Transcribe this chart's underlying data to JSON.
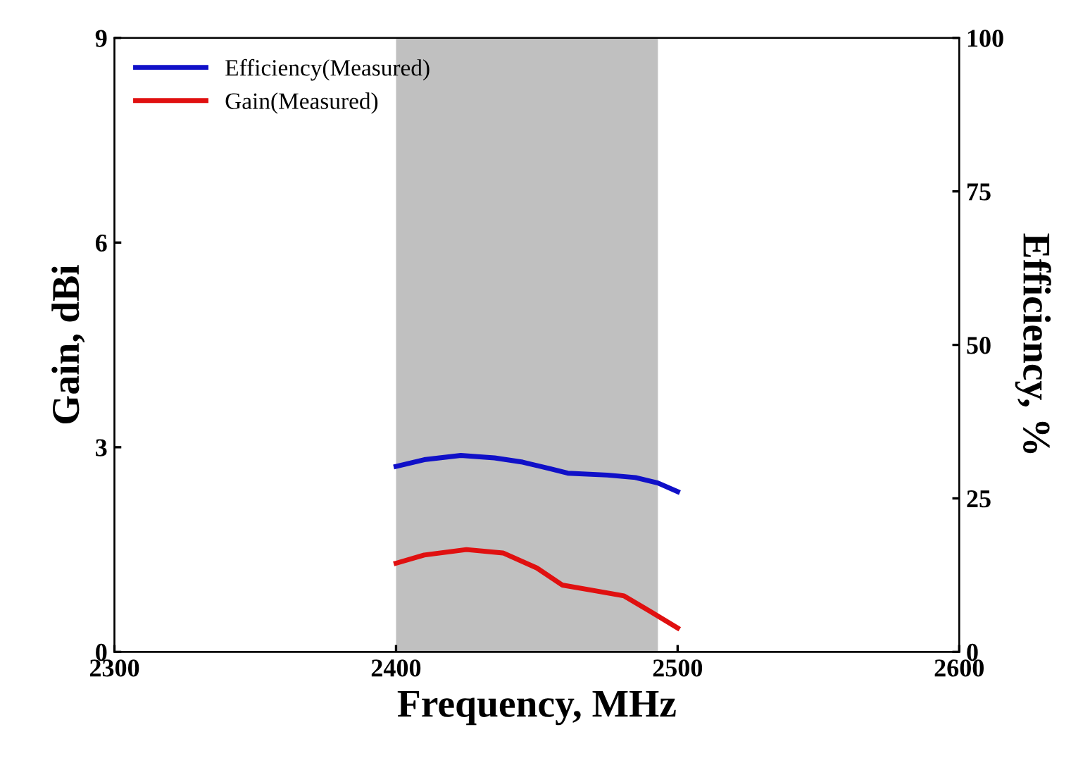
{
  "chart_data": {
    "type": "line",
    "xlabel": "Frequency, MHz",
    "ylabel": "Gain, dBi",
    "y2label": "Efficiency, %",
    "xlim": [
      2300,
      2600
    ],
    "xticks": [
      2300,
      2400,
      2500,
      2600
    ],
    "ylim": [
      0,
      9
    ],
    "yticks": [
      0,
      3,
      6,
      9
    ],
    "y2lim": [
      0,
      100
    ],
    "y2ticks": [
      0,
      25,
      50,
      75,
      100
    ],
    "legend": "top left",
    "grid": false,
    "bands": [
      {
        "axis": "x",
        "from": 2400,
        "to": 2493,
        "color": "#c0c0c0"
      }
    ],
    "series": [
      {
        "name": "Efficiency(Measured)",
        "color": "#1010c8",
        "axis": "y2",
        "x": [
          2400,
          2410,
          2423,
          2435,
          2445,
          2455,
          2461,
          2475,
          2485,
          2493,
          2500
        ],
        "values": [
          30.2,
          31.3,
          32.0,
          31.6,
          30.9,
          29.8,
          29.1,
          28.8,
          28.4,
          27.5,
          26.1
        ]
      },
      {
        "name": "Gain(Measured)",
        "color": "#e01010",
        "x": [
          2400,
          2410,
          2425,
          2438,
          2450,
          2459,
          2470,
          2481,
          2490,
          2500
        ],
        "values": [
          1.3,
          1.42,
          1.5,
          1.45,
          1.23,
          0.98,
          0.9,
          0.82,
          0.6,
          0.35
        ]
      }
    ]
  }
}
